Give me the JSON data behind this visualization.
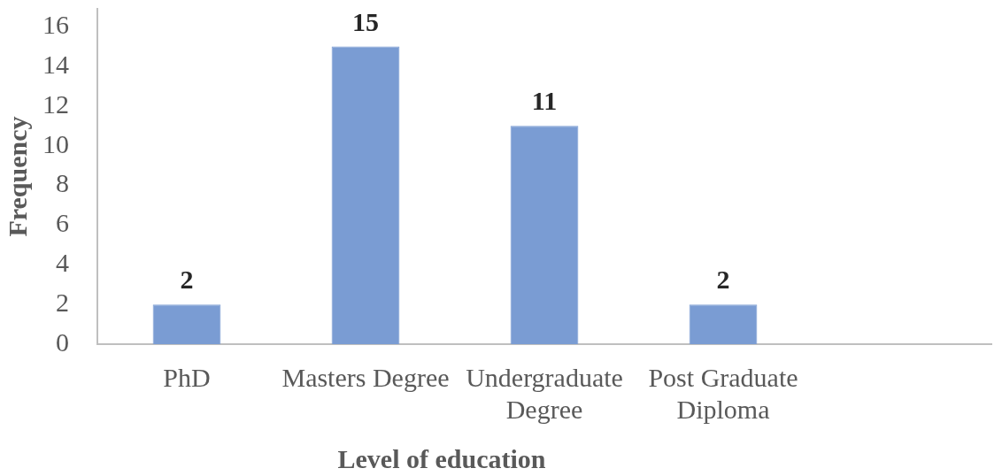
{
  "chart_data": {
    "type": "bar",
    "xlabel": "Level of education",
    "ylabel": "Frequency",
    "categories": [
      "PhD",
      "Masters Degree",
      "Undergraduate Degree",
      "Post Graduate Diploma",
      null
    ],
    "values": [
      2,
      15,
      11,
      2,
      null
    ],
    "color": "#7a9cd3",
    "ylim": [
      0,
      16.9
    ],
    "yticks": [
      0,
      2,
      4,
      6,
      8,
      10,
      12,
      14,
      16
    ],
    "data_labels": true
  }
}
